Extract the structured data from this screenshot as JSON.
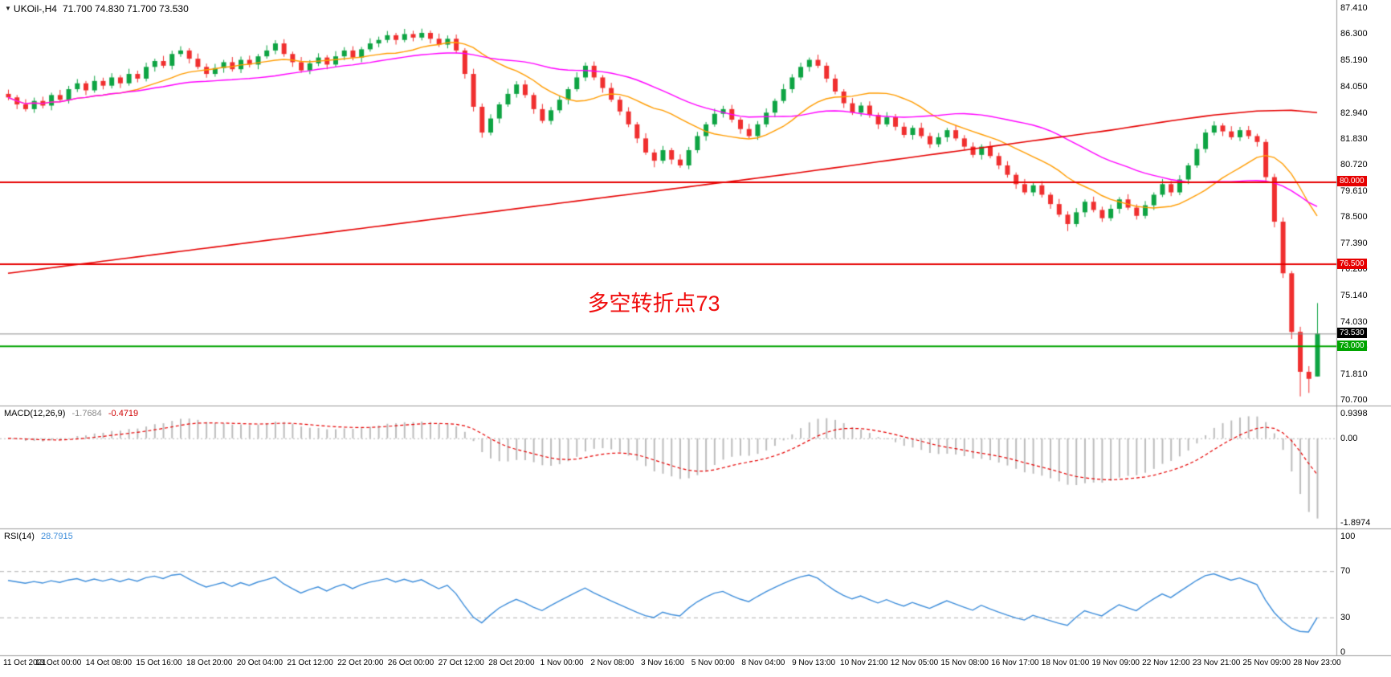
{
  "chart": {
    "symbol_period": "UKOil-,H4",
    "ohlc_display": "71.700 74.830 71.700 73.530",
    "annotation": {
      "text": "多空转折点73",
      "color": "#F00C0C"
    }
  },
  "colors": {
    "up": "#0EA443",
    "down": "#F02F2F",
    "background": "#FFFFFF",
    "separator": "#9A9A9A",
    "axis_text": "#000000"
  },
  "chart_data": {
    "type": "candlestick",
    "title": "UKOil-,H4",
    "current_bar": {
      "open": 71.7,
      "high": 74.83,
      "low": 71.7,
      "close": 73.53
    },
    "ylim": [
      70.7,
      87.41
    ],
    "price_axis_labels": [
      "87.410",
      "86.300",
      "85.190",
      "84.050",
      "82.940",
      "81.830",
      "80.720",
      "79.610",
      "78.500",
      "77.390",
      "76.280",
      "75.140",
      "74.030",
      "72.920",
      "71.810",
      "70.700"
    ],
    "hlines": [
      {
        "price": 80.0,
        "label": "80.000",
        "color": "#E60000",
        "tag_bg": "#E60000",
        "width": 2
      },
      {
        "price": 76.5,
        "label": "76.500",
        "color": "#E60000",
        "tag_bg": "#E60000",
        "width": 2
      },
      {
        "price": 73.53,
        "label": "73.530",
        "color": "#8C8C8C",
        "tag_bg": "#000000",
        "width": 1
      },
      {
        "price": 73.0,
        "label": "73.000",
        "color": "#00A400",
        "tag_bg": "#00A400",
        "width": 2
      }
    ],
    "overlays": {
      "ma_fast": {
        "name": "ma-orange",
        "color": "#FF9C00",
        "period": 14
      },
      "ma_mid": {
        "name": "ma-magenta",
        "color": "#FF00FF",
        "period": 32
      },
      "ma_long": {
        "name": "ma-red",
        "color": "#E60000",
        "anchors": [
          [
            0,
            76.1
          ],
          [
            15,
            76.8
          ],
          [
            30,
            77.5
          ],
          [
            45,
            78.2
          ],
          [
            60,
            78.9
          ],
          [
            75,
            79.6
          ],
          [
            90,
            80.3
          ],
          [
            100,
            80.8
          ],
          [
            110,
            81.3
          ],
          [
            120,
            81.8
          ],
          [
            128,
            82.2
          ],
          [
            135,
            82.6
          ],
          [
            140,
            82.85
          ],
          [
            145,
            83.02
          ],
          [
            149,
            83.05
          ],
          [
            152,
            82.95
          ]
        ]
      }
    },
    "indicators": [
      {
        "type": "macd",
        "label": "MACD(12,26,9)",
        "values": [
          "-1.7684",
          "-0.4719"
        ],
        "params": [
          12,
          26,
          9
        ],
        "axis_labels": [
          "0.9398",
          "0.00",
          "-1.8974"
        ],
        "colors": {
          "histogram": "#BDBDBD",
          "signal": "#E60000"
        }
      },
      {
        "type": "rsi",
        "label": "RSI(14)",
        "value": "28.7915",
        "period": 14,
        "axis_labels": [
          "100",
          "70",
          "30",
          "0"
        ],
        "levels": [
          70,
          30
        ],
        "color": "#3E8EDB"
      }
    ],
    "x_axis_labels": [
      "11 Oct 2021",
      "13 Oct 00:00",
      "14 Oct 08:00",
      "15 Oct 16:00",
      "18 Oct 20:00",
      "20 Oct 04:00",
      "21 Oct 12:00",
      "22 Oct 20:00",
      "26 Oct 00:00",
      "27 Oct 12:00",
      "28 Oct 20:00",
      "1 Nov 00:00",
      "2 Nov 08:00",
      "3 Nov 16:00",
      "5 Nov 00:00",
      "8 Nov 04:00",
      "9 Nov 13:00",
      "10 Nov 21:00",
      "12 Nov 05:00",
      "15 Nov 08:00",
      "16 Nov 17:00",
      "18 Nov 01:00",
      "19 Nov 09:00",
      "22 Nov 12:00",
      "23 Nov 21:00",
      "25 Nov 09:00",
      "28 Nov 23:00"
    ],
    "candles": [
      [
        83.75,
        83.93,
        83.48,
        83.6
      ],
      [
        83.6,
        83.7,
        83.1,
        83.3
      ],
      [
        83.3,
        83.52,
        83.0,
        83.1
      ],
      [
        83.1,
        83.59,
        82.94,
        83.45
      ],
      [
        83.45,
        83.63,
        83.13,
        83.25
      ],
      [
        83.25,
        83.8,
        83.05,
        83.7
      ],
      [
        83.7,
        83.92,
        83.4,
        83.5
      ],
      [
        83.5,
        84.09,
        83.34,
        83.95
      ],
      [
        83.95,
        84.38,
        83.83,
        84.2
      ],
      [
        84.2,
        84.3,
        83.7,
        83.9
      ],
      [
        83.9,
        84.52,
        83.8,
        84.3
      ],
      [
        84.3,
        84.44,
        83.94,
        84.1
      ],
      [
        84.1,
        84.63,
        83.98,
        84.45
      ],
      [
        84.45,
        84.55,
        84.0,
        84.2
      ],
      [
        84.2,
        84.82,
        84.1,
        84.6
      ],
      [
        84.6,
        84.74,
        84.24,
        84.4
      ],
      [
        84.4,
        85.08,
        84.28,
        84.9
      ],
      [
        84.9,
        85.25,
        84.7,
        85.15
      ],
      [
        85.15,
        85.37,
        84.85,
        84.95
      ],
      [
        84.95,
        85.59,
        84.79,
        85.45
      ],
      [
        85.45,
        85.78,
        85.33,
        85.6
      ],
      [
        85.6,
        85.7,
        85.05,
        85.25
      ],
      [
        85.25,
        85.47,
        84.8,
        84.9
      ],
      [
        84.9,
        85.04,
        84.44,
        84.6
      ],
      [
        84.6,
        85.03,
        84.48,
        84.85
      ],
      [
        84.85,
        85.2,
        84.65,
        85.1
      ],
      [
        85.1,
        85.32,
        84.7,
        84.8
      ],
      [
        84.8,
        85.34,
        84.64,
        85.2
      ],
      [
        85.2,
        85.38,
        84.88,
        85.0
      ],
      [
        85.0,
        85.45,
        84.8,
        85.35
      ],
      [
        85.35,
        85.82,
        85.25,
        85.6
      ],
      [
        85.6,
        86.04,
        85.44,
        85.9
      ],
      [
        85.9,
        86.08,
        85.33,
        85.45
      ],
      [
        85.45,
        85.55,
        84.9,
        85.1
      ],
      [
        85.1,
        85.32,
        84.65,
        84.75
      ],
      [
        84.75,
        85.19,
        84.59,
        85.05
      ],
      [
        85.05,
        85.48,
        84.93,
        85.3
      ],
      [
        85.3,
        85.4,
        84.8,
        85.0
      ],
      [
        85.0,
        85.57,
        84.9,
        85.35
      ],
      [
        85.35,
        85.74,
        85.19,
        85.6
      ],
      [
        85.6,
        85.78,
        85.18,
        85.3
      ],
      [
        85.3,
        85.75,
        85.1,
        85.65
      ],
      [
        85.65,
        86.12,
        85.55,
        85.9
      ],
      [
        85.9,
        86.19,
        85.74,
        86.05
      ],
      [
        86.05,
        86.43,
        85.93,
        86.25
      ],
      [
        86.25,
        86.35,
        85.85,
        86.05
      ],
      [
        86.05,
        86.52,
        85.95,
        86.3
      ],
      [
        86.3,
        86.44,
        85.99,
        86.15
      ],
      [
        86.15,
        86.53,
        86.03,
        86.35
      ],
      [
        86.35,
        86.45,
        85.9,
        86.1
      ],
      [
        86.1,
        86.32,
        85.75,
        85.85
      ],
      [
        85.85,
        86.24,
        85.69,
        86.1
      ],
      [
        86.1,
        86.28,
        85.48,
        85.6
      ],
      [
        85.6,
        85.7,
        84.4,
        84.6
      ],
      [
        84.6,
        84.82,
        83.0,
        83.2
      ],
      [
        83.2,
        83.34,
        81.88,
        82.1
      ],
      [
        82.1,
        82.88,
        81.98,
        82.7
      ],
      [
        82.7,
        83.4,
        82.5,
        83.3
      ],
      [
        83.3,
        83.97,
        83.2,
        83.75
      ],
      [
        83.75,
        84.29,
        83.59,
        84.15
      ],
      [
        84.15,
        84.33,
        83.58,
        83.7
      ],
      [
        83.7,
        83.8,
        82.9,
        83.1
      ],
      [
        83.1,
        83.32,
        82.5,
        82.6
      ],
      [
        82.6,
        83.19,
        82.44,
        83.05
      ],
      [
        83.05,
        83.68,
        82.93,
        83.5
      ],
      [
        83.5,
        84.05,
        83.3,
        83.95
      ],
      [
        83.95,
        84.67,
        83.85,
        84.45
      ],
      [
        84.45,
        85.09,
        84.29,
        84.95
      ],
      [
        84.95,
        85.13,
        84.33,
        84.45
      ],
      [
        84.45,
        84.55,
        83.8,
        84.0
      ],
      [
        84.0,
        84.22,
        83.4,
        83.5
      ],
      [
        83.5,
        83.64,
        82.84,
        83.0
      ],
      [
        83.0,
        83.18,
        82.33,
        82.45
      ],
      [
        82.45,
        82.55,
        81.65,
        81.85
      ],
      [
        81.85,
        82.07,
        81.15,
        81.25
      ],
      [
        81.25,
        81.39,
        80.62,
        80.9
      ],
      [
        80.9,
        81.53,
        80.78,
        81.35
      ],
      [
        81.35,
        81.45,
        80.75,
        80.95
      ],
      [
        80.95,
        81.17,
        80.6,
        80.7
      ],
      [
        80.7,
        81.49,
        80.54,
        81.35
      ],
      [
        81.35,
        82.13,
        81.23,
        81.95
      ],
      [
        81.95,
        82.55,
        81.75,
        82.45
      ],
      [
        82.45,
        83.12,
        82.35,
        82.9
      ],
      [
        82.9,
        83.24,
        82.74,
        83.1
      ],
      [
        83.1,
        83.28,
        82.53,
        82.65
      ],
      [
        82.65,
        82.75,
        82.05,
        82.25
      ],
      [
        82.25,
        82.47,
        81.85,
        81.95
      ],
      [
        81.95,
        82.59,
        81.79,
        82.45
      ],
      [
        82.45,
        83.13,
        82.33,
        82.95
      ],
      [
        82.95,
        83.55,
        82.75,
        83.45
      ],
      [
        83.45,
        84.17,
        83.35,
        83.95
      ],
      [
        83.95,
        84.59,
        83.79,
        84.45
      ],
      [
        84.45,
        85.08,
        84.33,
        84.9
      ],
      [
        84.9,
        85.3,
        84.7,
        85.2
      ],
      [
        85.2,
        85.42,
        84.85,
        84.95
      ],
      [
        84.95,
        85.09,
        84.24,
        84.4
      ],
      [
        84.4,
        84.58,
        83.73,
        83.85
      ],
      [
        83.85,
        83.95,
        83.15,
        83.35
      ],
      [
        83.35,
        83.57,
        82.85,
        82.95
      ],
      [
        82.95,
        83.39,
        82.79,
        83.25
      ],
      [
        83.25,
        83.43,
        82.73,
        82.85
      ],
      [
        82.85,
        82.95,
        82.25,
        82.45
      ],
      [
        82.45,
        82.97,
        82.35,
        82.75
      ],
      [
        82.75,
        82.89,
        82.19,
        82.35
      ],
      [
        82.35,
        82.53,
        81.88,
        82.0
      ],
      [
        82.0,
        82.4,
        81.8,
        82.3
      ],
      [
        82.3,
        82.52,
        81.85,
        81.95
      ],
      [
        81.95,
        82.09,
        81.44,
        81.6
      ],
      [
        81.6,
        82.08,
        81.48,
        81.9
      ],
      [
        81.9,
        82.3,
        81.7,
        82.2
      ],
      [
        82.2,
        82.42,
        81.75,
        81.85
      ],
      [
        81.85,
        81.99,
        81.34,
        81.5
      ],
      [
        81.5,
        81.68,
        81.03,
        81.15
      ],
      [
        81.15,
        81.6,
        80.95,
        81.5
      ],
      [
        81.5,
        81.72,
        81.0,
        81.1
      ],
      [
        81.1,
        81.24,
        80.54,
        80.7
      ],
      [
        80.7,
        80.88,
        80.18,
        80.3
      ],
      [
        80.3,
        80.4,
        79.7,
        79.9
      ],
      [
        79.9,
        80.12,
        79.45,
        79.55
      ],
      [
        79.55,
        79.99,
        79.39,
        79.85
      ],
      [
        79.85,
        80.03,
        79.33,
        79.45
      ],
      [
        79.45,
        79.55,
        78.85,
        79.05
      ],
      [
        79.05,
        79.27,
        78.5,
        78.6
      ],
      [
        78.6,
        78.74,
        77.9,
        78.2
      ],
      [
        78.2,
        78.88,
        78.08,
        78.7
      ],
      [
        78.7,
        79.25,
        78.5,
        79.15
      ],
      [
        79.15,
        79.37,
        78.7,
        78.8
      ],
      [
        78.8,
        78.94,
        78.29,
        78.45
      ],
      [
        78.45,
        79.03,
        78.33,
        78.85
      ],
      [
        78.85,
        79.35,
        78.65,
        79.25
      ],
      [
        79.25,
        79.47,
        78.8,
        78.9
      ],
      [
        78.9,
        79.04,
        78.39,
        78.55
      ],
      [
        78.55,
        79.18,
        78.43,
        79.0
      ],
      [
        79.0,
        79.55,
        78.8,
        79.45
      ],
      [
        79.45,
        80.12,
        79.35,
        79.9
      ],
      [
        79.9,
        80.04,
        79.39,
        79.55
      ],
      [
        79.55,
        80.28,
        79.43,
        80.1
      ],
      [
        80.1,
        80.8,
        79.9,
        80.7
      ],
      [
        80.7,
        81.62,
        80.6,
        81.4
      ],
      [
        81.4,
        82.24,
        81.24,
        82.1
      ],
      [
        82.1,
        82.58,
        81.98,
        82.4
      ],
      [
        82.4,
        82.5,
        81.95,
        82.15
      ],
      [
        82.15,
        82.37,
        81.8,
        81.9
      ],
      [
        81.9,
        82.34,
        81.74,
        82.2
      ],
      [
        82.2,
        82.38,
        81.83,
        81.95
      ],
      [
        81.95,
        82.05,
        81.5,
        81.7
      ],
      [
        81.7,
        81.82,
        80.0,
        80.2
      ],
      [
        80.2,
        80.34,
        78.06,
        78.3
      ],
      [
        78.3,
        78.48,
        75.9,
        76.1
      ],
      [
        76.1,
        76.2,
        73.3,
        73.6
      ],
      [
        73.6,
        73.82,
        70.85,
        71.9
      ],
      [
        71.9,
        72.14,
        71.0,
        71.6
      ],
      [
        71.7,
        74.83,
        71.7,
        73.53
      ]
    ]
  }
}
